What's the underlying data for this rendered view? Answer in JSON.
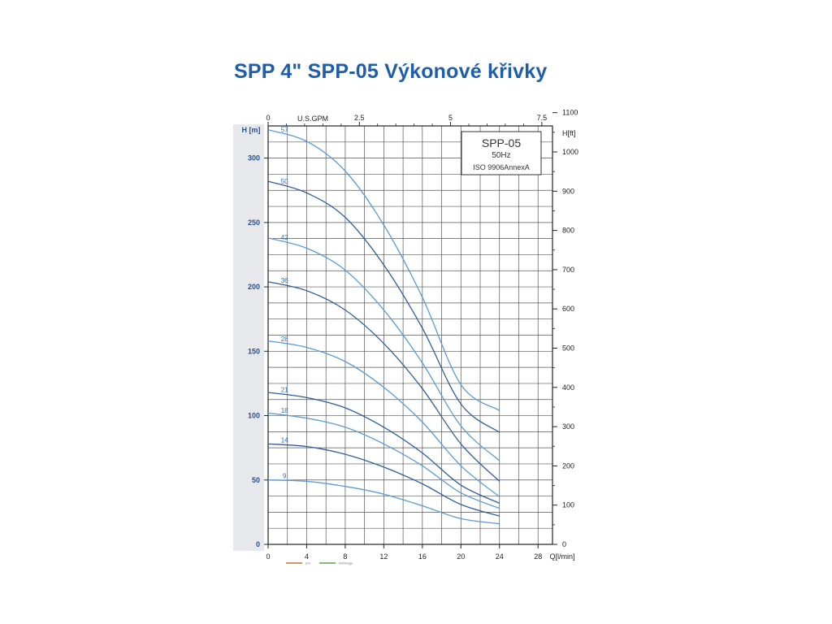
{
  "page": {
    "title": "SPP 4\" SPP-05 Výkonové křivky"
  },
  "chart_data": {
    "type": "line",
    "title": "SPP 4\" SPP-05 Výkonové křivky",
    "infobox": {
      "model": "SPP-05",
      "freq": "50Hz",
      "standard": "ISO 9906AnnexA"
    },
    "xlabel": "Q[l/min]",
    "ylabel": "H [m]",
    "ylabel_right": "H[ft]",
    "xlabel_top": "U.S.GPM",
    "xlim": [
      0,
      29.5
    ],
    "ylim": [
      0,
      325
    ],
    "x_ticks": [
      "0",
      "4",
      "8",
      "12",
      "16",
      "20",
      "24",
      "28"
    ],
    "y_ticks": [
      "0",
      "50",
      "100",
      "150",
      "200",
      "250",
      "300"
    ],
    "ft_ticks": [
      "0",
      "100",
      "200",
      "300",
      "400",
      "500",
      "600",
      "700",
      "800",
      "900",
      "1000",
      "1100"
    ],
    "gpm_ticks": [
      "0",
      "2.5",
      "5",
      "7.5"
    ],
    "grid": true,
    "legend_items": [
      {
        "label": "η%",
        "color": "#c0752f"
      },
      {
        "label": "kW/Stage",
        "color": "#5aa04a"
      }
    ],
    "series": [
      {
        "name": "57",
        "color": "#5b9bd5",
        "x": [
          0,
          4,
          8,
          12,
          16,
          20,
          24
        ],
        "y": [
          322,
          313,
          290,
          248,
          192,
          124,
          104
        ]
      },
      {
        "name": "50",
        "color": "#2e5f9a",
        "x": [
          0,
          4,
          8,
          12,
          16,
          20,
          24
        ],
        "y": [
          282,
          273,
          254,
          217,
          168,
          109,
          87
        ]
      },
      {
        "name": "42",
        "color": "#5b9bd5",
        "x": [
          0,
          4,
          8,
          12,
          16,
          20,
          24
        ],
        "y": [
          238,
          230,
          213,
          182,
          141,
          92,
          65
        ]
      },
      {
        "name": "36",
        "color": "#2e5f9a",
        "x": [
          0,
          4,
          8,
          12,
          16,
          20,
          24
        ],
        "y": [
          204,
          197,
          182,
          156,
          121,
          78,
          49
        ]
      },
      {
        "name": "28",
        "color": "#5b9bd5",
        "x": [
          0,
          4,
          8,
          12,
          16,
          20,
          24
        ],
        "y": [
          158,
          153,
          142,
          122,
          95,
          61,
          37
        ]
      },
      {
        "name": "21",
        "color": "#2e5f9a",
        "x": [
          0,
          4,
          8,
          12,
          16,
          20,
          24
        ],
        "y": [
          118,
          114,
          106,
          91,
          71,
          46,
          32
        ]
      },
      {
        "name": "18",
        "color": "#5b9bd5",
        "x": [
          0,
          4,
          8,
          12,
          16,
          20,
          24
        ],
        "y": [
          102,
          98,
          91,
          78,
          61,
          40,
          28
        ]
      },
      {
        "name": "14",
        "color": "#2e5f9a",
        "x": [
          0,
          4,
          8,
          12,
          16,
          20,
          24
        ],
        "y": [
          78,
          76,
          70,
          60,
          47,
          31,
          22
        ]
      },
      {
        "name": "9",
        "color": "#5b9bd5",
        "x": [
          0,
          4,
          8,
          12,
          16,
          20,
          24
        ],
        "y": [
          50,
          49,
          45,
          39,
          30,
          20,
          16
        ]
      }
    ]
  }
}
